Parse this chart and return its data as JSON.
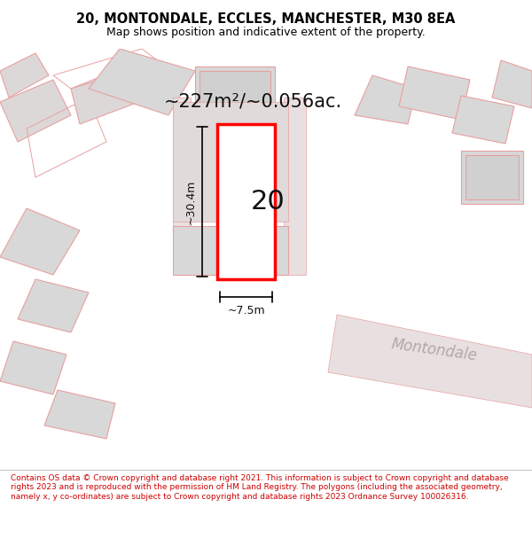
{
  "title_line1": "20, MONTONDALE, ECCLES, MANCHESTER, M30 8EA",
  "title_line2": "Map shows position and indicative extent of the property.",
  "area_label": "~227m²/~0.056ac.",
  "property_number": "20",
  "width_label": "~7.5m",
  "height_label": "~30.4m",
  "street_label": "Montondale",
  "footer_text": "Contains OS data © Crown copyright and database right 2021. This information is subject to Crown copyright and database rights 2023 and is reproduced with the permission of HM Land Registry. The polygons (including the associated geometry, namely x, y co-ordinates) are subject to Crown copyright and database rights 2023 Ordnance Survey 100026316.",
  "bg_color": "#f5f0f0",
  "map_bg": "#f5f0f0",
  "plot_color": "#ff0000",
  "building_color": "#d8d8d8",
  "road_color": "#e8e0e0",
  "line_color": "#000000",
  "footer_bg": "#ffffff",
  "title_bg": "#ffffff",
  "outline_color": "#e8a0a0"
}
